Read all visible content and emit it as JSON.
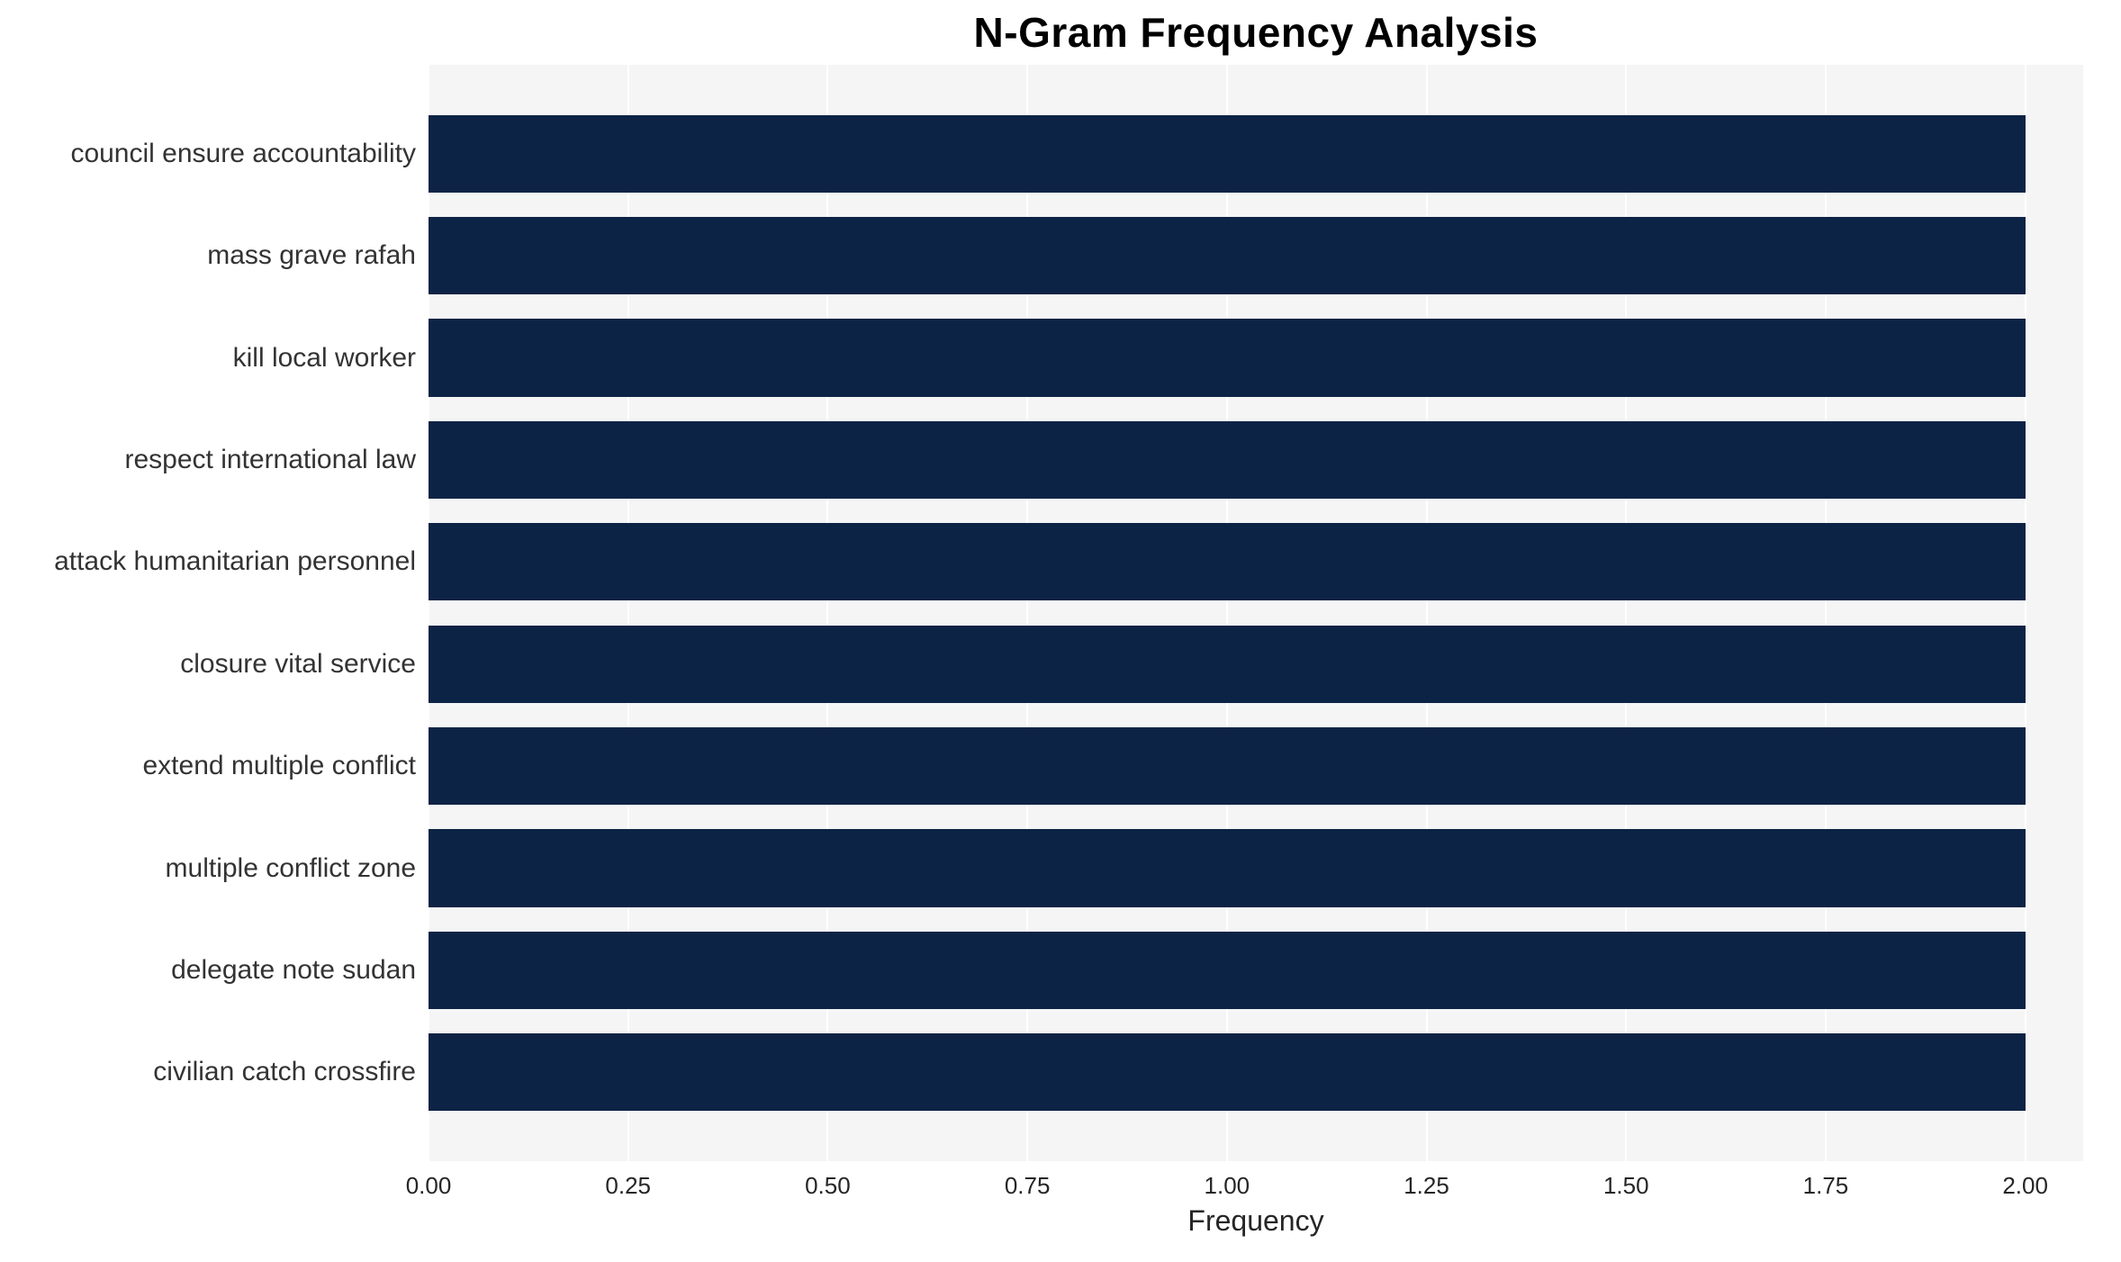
{
  "chart_data": {
    "type": "bar",
    "orientation": "horizontal",
    "title": "N-Gram Frequency Analysis",
    "xlabel": "Frequency",
    "ylabel": "",
    "categories": [
      "council ensure accountability",
      "mass grave rafah",
      "kill local worker",
      "respect international law",
      "attack humanitarian personnel",
      "closure vital service",
      "extend multiple conflict",
      "multiple conflict zone",
      "delegate note sudan",
      "civilian catch crossfire"
    ],
    "values": [
      2,
      2,
      2,
      2,
      2,
      2,
      2,
      2,
      2,
      2
    ],
    "xlim": [
      0,
      2.0
    ],
    "xtick_labels": [
      "0.00",
      "0.25",
      "0.50",
      "0.75",
      "1.00",
      "1.25",
      "1.50",
      "1.75",
      "2.00"
    ],
    "xtick_values": [
      0,
      0.25,
      0.5,
      0.75,
      1.0,
      1.25,
      1.5,
      1.75,
      2.0
    ],
    "grid": true,
    "legend": "none",
    "colors": {
      "bar": "#0d2345",
      "plot_background": "#f5f5f6",
      "gridline": "#ffffff",
      "title_text": "#000000",
      "axis_text": "#333333"
    }
  }
}
